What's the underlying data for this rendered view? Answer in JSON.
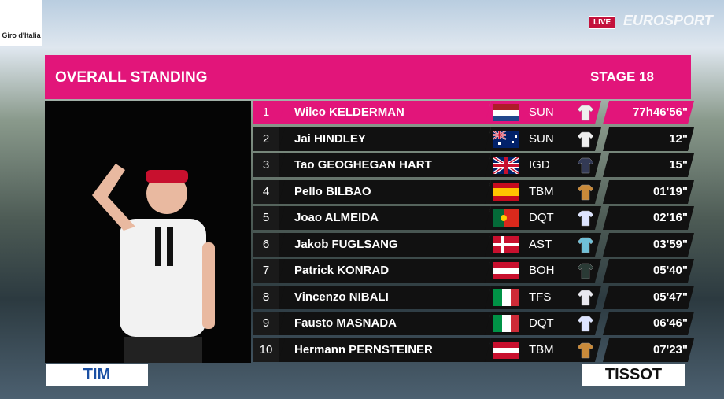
{
  "broadcast": {
    "race_logo": "Giro d'Italia",
    "live": "LIVE",
    "channel": "EUROSPORT"
  },
  "header": {
    "title": "OVERALL STANDING",
    "stage": "STAGE 18"
  },
  "table": {
    "rows": [
      {
        "rank": 1,
        "rider": "Wilco KELDERMAN",
        "team": "SUN",
        "time": "77h46'56\""
      },
      {
        "rank": 2,
        "rider": "Jai HINDLEY",
        "team": "SUN",
        "time": "12\""
      },
      {
        "rank": 3,
        "rider": "Tao GEOGHEGAN HART",
        "team": "IGD",
        "time": "15\""
      },
      {
        "rank": 4,
        "rider": "Pello BILBAO",
        "team": "TBM",
        "time": "01'19\""
      },
      {
        "rank": 5,
        "rider": "Joao ALMEIDA",
        "team": "DQT",
        "time": "02'16\""
      },
      {
        "rank": 6,
        "rider": "Jakob FUGLSANG",
        "team": "AST",
        "time": "03'59\""
      },
      {
        "rank": 7,
        "rider": "Patrick KONRAD",
        "team": "BOH",
        "time": "05'40\""
      },
      {
        "rank": 8,
        "rider": "Vincenzo NIBALI",
        "team": "TFS",
        "time": "05'47\""
      },
      {
        "rank": 9,
        "rider": "Fausto MASNADA",
        "team": "DQT",
        "time": "06'46\""
      },
      {
        "rank": 10,
        "rider": "Hermann PERNSTEINER",
        "team": "TBM",
        "time": "07'23\""
      }
    ]
  },
  "sponsors": {
    "left": "TIM",
    "right": "TISSOT"
  }
}
